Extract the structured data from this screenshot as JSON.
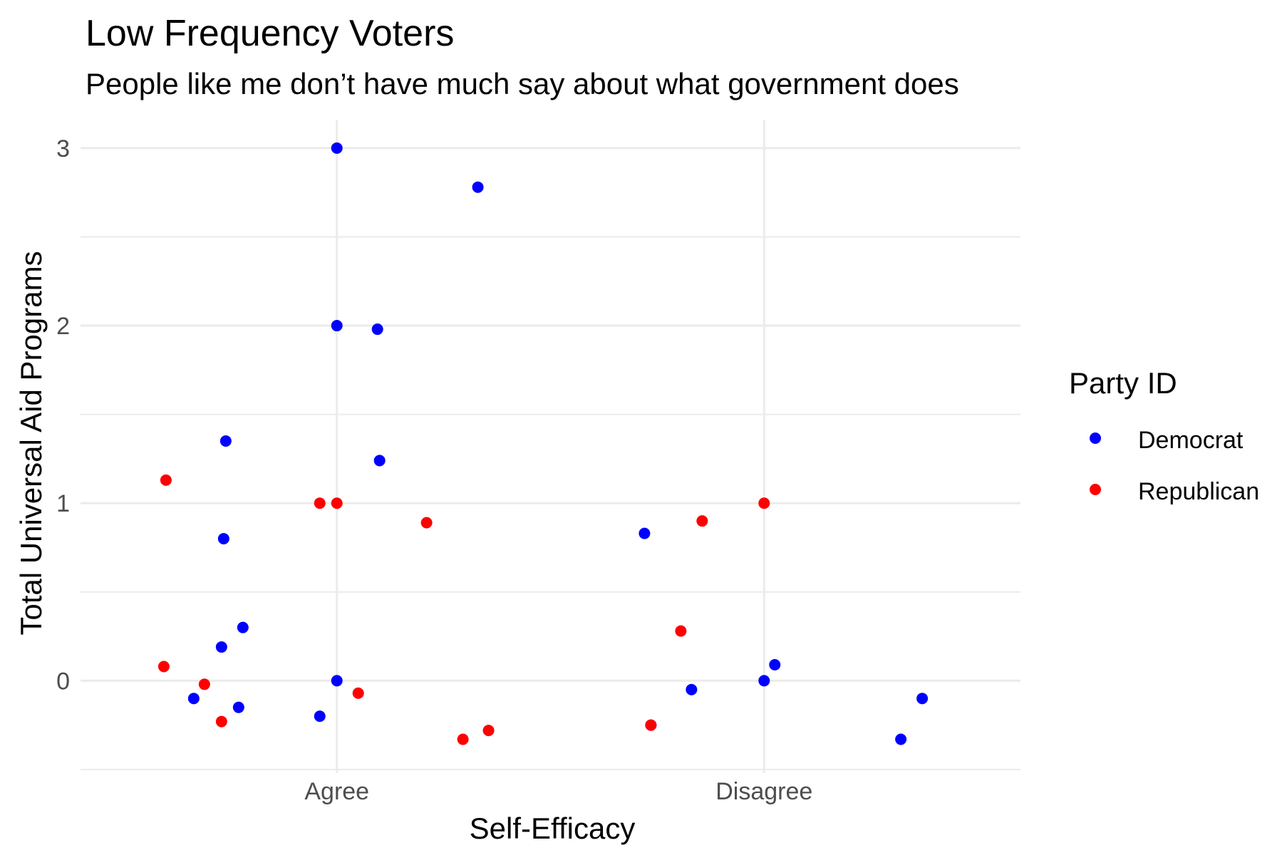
{
  "chart_data": {
    "type": "scatter",
    "title": "Low Frequency Voters",
    "subtitle": "People like me don’t have much say about what government does",
    "xlabel": "Self-Efficacy",
    "ylabel": "Total Universal Aid Programs",
    "categories": [
      "Agree",
      "Disagree"
    ],
    "y_ticks": [
      "0",
      "1",
      "2",
      "3"
    ],
    "ylim": [
      -0.52,
      3.16
    ],
    "xlim": [
      0.4,
      2.6
    ],
    "grid": true,
    "legend": {
      "title": "Party ID",
      "placement": "right"
    },
    "note": "points are jittered horizontally around each category",
    "series": [
      {
        "name": "Democrat",
        "color": "#0000ff",
        "points": [
          {
            "x": 1.0,
            "y": 3.0
          },
          {
            "x": 1.33,
            "y": 2.78
          },
          {
            "x": 1.0,
            "y": 2.0
          },
          {
            "x": 1.095,
            "y": 1.98
          },
          {
            "x": 0.74,
            "y": 1.35
          },
          {
            "x": 1.1,
            "y": 1.24
          },
          {
            "x": 0.735,
            "y": 0.8
          },
          {
            "x": 0.78,
            "y": 0.3
          },
          {
            "x": 0.73,
            "y": 0.19
          },
          {
            "x": 1.0,
            "y": 0.0
          },
          {
            "x": 0.665,
            "y": -0.1
          },
          {
            "x": 0.77,
            "y": -0.15
          },
          {
            "x": 0.96,
            "y": -0.2
          },
          {
            "x": 1.72,
            "y": 0.83
          },
          {
            "x": 2.0,
            "y": 0.0
          },
          {
            "x": 2.025,
            "y": 0.09
          },
          {
            "x": 1.83,
            "y": -0.05
          },
          {
            "x": 1.735,
            "y": -0.25
          },
          {
            "x": 2.37,
            "y": -0.1
          },
          {
            "x": 2.32,
            "y": -0.33
          }
        ]
      },
      {
        "name": "Republican",
        "color": "#ff0000",
        "points": [
          {
            "x": 0.6,
            "y": 1.13
          },
          {
            "x": 0.96,
            "y": 1.0
          },
          {
            "x": 1.0,
            "y": 1.0
          },
          {
            "x": 1.21,
            "y": 0.89
          },
          {
            "x": 0.595,
            "y": 0.08
          },
          {
            "x": 0.69,
            "y": -0.02
          },
          {
            "x": 0.73,
            "y": -0.23
          },
          {
            "x": 1.05,
            "y": -0.07
          },
          {
            "x": 1.295,
            "y": -0.33
          },
          {
            "x": 1.355,
            "y": -0.28
          },
          {
            "x": 2.0,
            "y": 1.0
          },
          {
            "x": 1.855,
            "y": 0.9
          },
          {
            "x": 1.805,
            "y": 0.28
          },
          {
            "x": 1.735,
            "y": -0.25
          }
        ]
      }
    ]
  }
}
